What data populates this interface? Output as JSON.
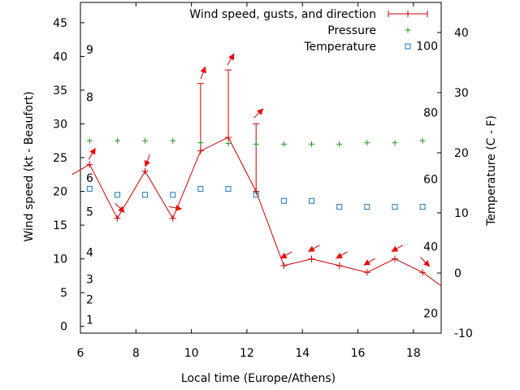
{
  "chart_data": {
    "type": "line",
    "title": "",
    "xlabel": "Local time (Europe/Athens)",
    "ylabel": "Wind speed (kt - Beaufort)",
    "y2label": "Temperature (C - F)",
    "xlim": [
      6,
      19
    ],
    "ylim": [
      -1,
      48
    ],
    "y2lim": [
      -10,
      45
    ],
    "x_ticks": [
      6,
      8,
      10,
      12,
      14,
      16,
      18
    ],
    "y_ticks": [
      0,
      5,
      10,
      15,
      20,
      25,
      30,
      35,
      40,
      45
    ],
    "y2_ticks": [
      -10,
      0,
      10,
      20,
      30,
      40
    ],
    "beaufort_labels": [
      {
        "label": "1",
        "y": 1
      },
      {
        "label": "2",
        "y": 4
      },
      {
        "label": "3",
        "y": 7
      },
      {
        "label": "4",
        "y": 11
      },
      {
        "label": "5",
        "y": 17
      },
      {
        "label": "6",
        "y": 22
      },
      {
        "label": "8",
        "y": 34
      },
      {
        "label": "9",
        "y": 41
      }
    ],
    "fahrenheit_labels": [
      {
        "label": "20",
        "y2": -6.7
      },
      {
        "label": "40",
        "y2": 4.4
      },
      {
        "label": "60",
        "y2": 15.6
      },
      {
        "label": "80",
        "y2": 26.7
      },
      {
        "label": "100",
        "y2": 37.8
      }
    ],
    "grid": false,
    "legend_position": "top-right",
    "legend": [
      "Wind speed, gusts, and direction",
      "Pressure",
      "Temperature"
    ],
    "colors": {
      "wind": "#cc0000",
      "pressure": "#1a9a1a",
      "temperature": "#1f77b4"
    },
    "series": [
      {
        "name": "Wind speed, gusts, and direction",
        "x": [
          5.7,
          6.33,
          7.33,
          8.33,
          9.33,
          10.33,
          11.33,
          12.33,
          13.33,
          14.33,
          15.33,
          16.33,
          17.33,
          18.33,
          19.0
        ],
        "y": [
          22.5,
          24,
          16,
          23,
          16,
          26,
          28,
          20,
          9,
          10,
          9,
          8,
          10,
          8,
          6
        ],
        "gusts": [
          null,
          null,
          null,
          null,
          null,
          36,
          38,
          30,
          null,
          null,
          null,
          null,
          null,
          null,
          null
        ],
        "direction_deg": [
          null,
          30,
          135,
          200,
          100,
          20,
          30,
          45,
          240,
          240,
          240,
          240,
          240,
          135,
          null
        ]
      },
      {
        "name": "Pressure",
        "x": [
          6.33,
          7.33,
          8.33,
          9.33,
          10.33,
          11.33,
          12.33,
          13.33,
          14.33,
          15.33,
          16.33,
          17.33,
          18.33
        ],
        "y": [
          27.5,
          27.5,
          27.5,
          27.5,
          27.2,
          27.1,
          27,
          27,
          27,
          27,
          27.2,
          27.2,
          27.5
        ]
      },
      {
        "name": "Temperature",
        "axis": "y2",
        "x": [
          6.33,
          7.33,
          8.33,
          9.33,
          10.33,
          11.33,
          12.33,
          13.33,
          14.33,
          15.33,
          16.33,
          17.33,
          18.33
        ],
        "y": [
          14,
          13,
          13,
          13,
          14,
          14,
          13,
          12,
          12,
          11,
          11,
          11,
          11
        ]
      }
    ]
  }
}
